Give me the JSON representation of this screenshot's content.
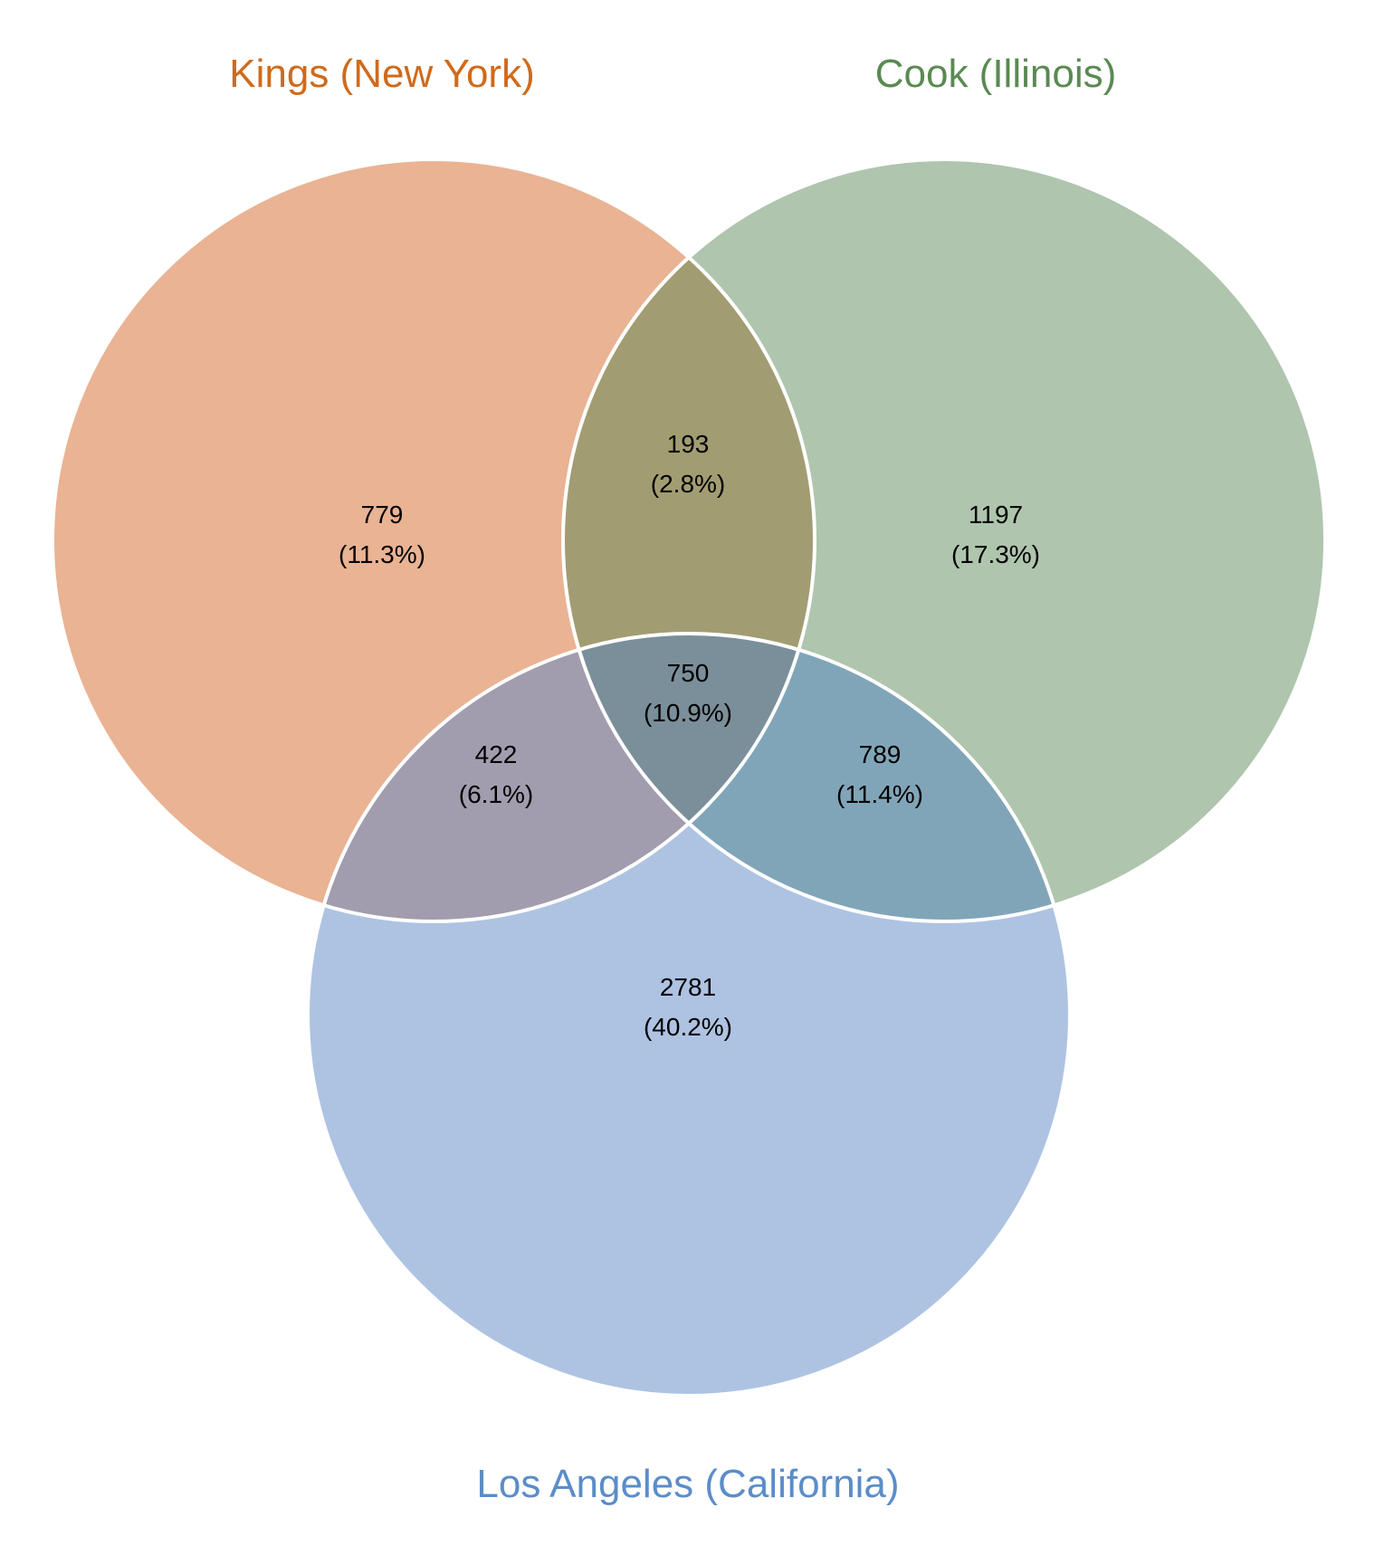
{
  "chart_data": {
    "type": "venn",
    "sets": [
      {
        "name": "Kings (New York)",
        "label_color": "#d06a1a",
        "fill": "#e9b394"
      },
      {
        "name": "Cook (Illinois)",
        "label_color": "#5a8a52",
        "fill": "#afc5ae"
      },
      {
        "name": "Los Angeles (California)",
        "label_color": "#5b8dc8",
        "fill": "#aec3e2"
      }
    ],
    "regions": [
      {
        "sets": [
          "Kings (New York)"
        ],
        "count": "779",
        "percent": "(11.3%)",
        "fill": "#e9b394"
      },
      {
        "sets": [
          "Cook (Illinois)"
        ],
        "count": "1197",
        "percent": "(17.3%)",
        "fill": "#afc5ae"
      },
      {
        "sets": [
          "Los Angeles (California)"
        ],
        "count": "2781",
        "percent": "(40.2%)",
        "fill": "#aec3e2"
      },
      {
        "sets": [
          "Kings (New York)",
          "Cook (Illinois)"
        ],
        "count": "193",
        "percent": "(2.8%)",
        "fill": "#a29c72"
      },
      {
        "sets": [
          "Kings (New York)",
          "Los Angeles (California)"
        ],
        "count": "422",
        "percent": "(6.1%)",
        "fill": "#a19dae"
      },
      {
        "sets": [
          "Cook (Illinois)",
          "Los Angeles (California)"
        ],
        "count": "789",
        "percent": "(11.4%)",
        "fill": "#81a5b8"
      },
      {
        "sets": [
          "Kings (New York)",
          "Cook (Illinois)",
          "Los Angeles (California)"
        ],
        "count": "750",
        "percent": "(10.9%)",
        "fill": "#7b8f9a"
      }
    ]
  }
}
